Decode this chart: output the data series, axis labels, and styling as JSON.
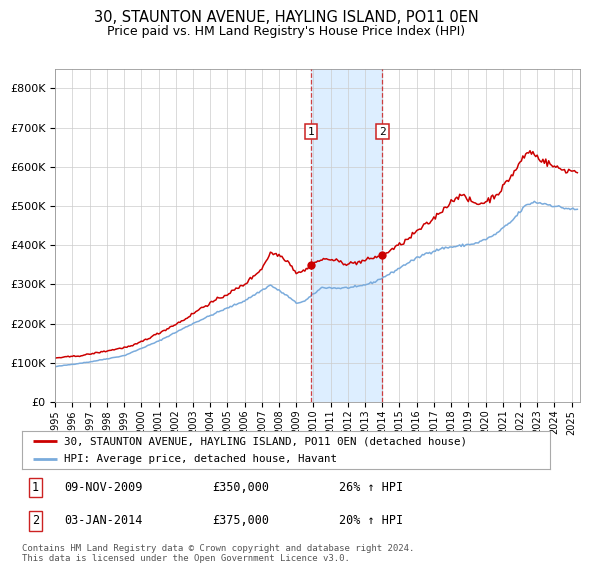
{
  "title": "30, STAUNTON AVENUE, HAYLING ISLAND, PO11 0EN",
  "subtitle": "Price paid vs. HM Land Registry's House Price Index (HPI)",
  "legend_line1": "30, STAUNTON AVENUE, HAYLING ISLAND, PO11 0EN (detached house)",
  "legend_line2": "HPI: Average price, detached house, Havant",
  "footnote": "Contains HM Land Registry data © Crown copyright and database right 2024.\nThis data is licensed under the Open Government Licence v3.0.",
  "annotation1_label": "1",
  "annotation1_date": "09-NOV-2009",
  "annotation1_price": "£350,000",
  "annotation1_hpi": "26% ↑ HPI",
  "annotation2_label": "2",
  "annotation2_date": "03-JAN-2014",
  "annotation2_price": "£375,000",
  "annotation2_hpi": "20% ↑ HPI",
  "sale1_date_num": 2009.86,
  "sale1_price": 350000,
  "sale2_date_num": 2014.01,
  "sale2_price": 375000,
  "vline1_date": 2009.86,
  "vline2_date": 2014.01,
  "hpi_color": "#7aabdc",
  "property_color": "#cc0000",
  "background_color": "#ffffff",
  "grid_color": "#cccccc",
  "shade_color": "#ddeeff",
  "vline_color": "#cc2222",
  "ylim": [
    0,
    850000
  ],
  "yticks": [
    0,
    100000,
    200000,
    300000,
    400000,
    500000,
    600000,
    700000,
    800000
  ],
  "ytick_labels": [
    "£0",
    "£100K",
    "£200K",
    "£300K",
    "£400K",
    "£500K",
    "£600K",
    "£700K",
    "£800K"
  ],
  "xlim_start": 1995,
  "xlim_end": 2025.5
}
